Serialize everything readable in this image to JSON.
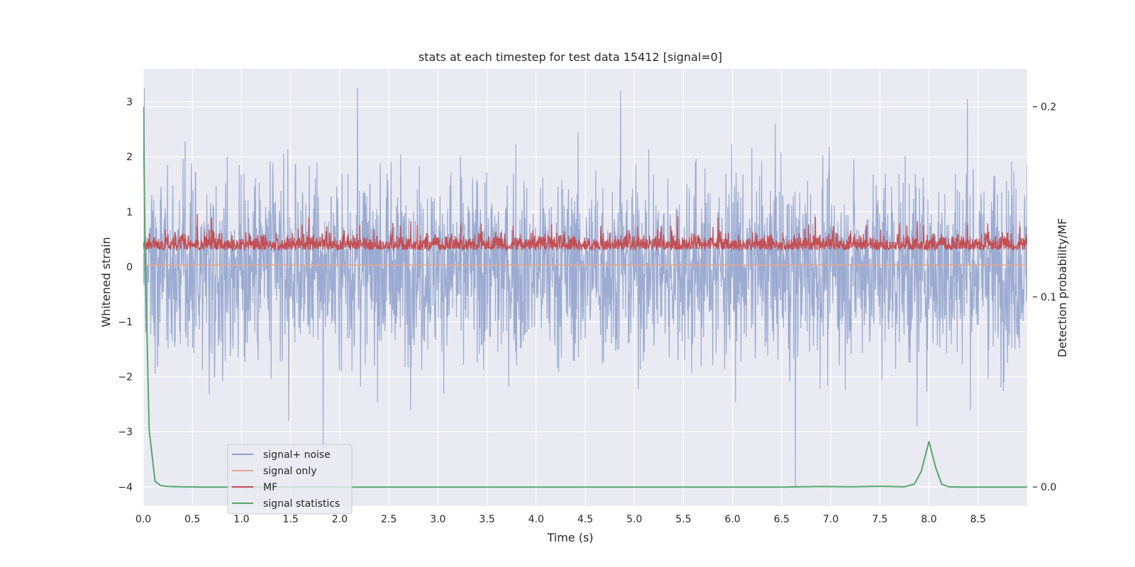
{
  "chart_data": {
    "type": "line",
    "title": "stats at each timestep for test data 15412 [signal=0]",
    "xlabel": "Time (s)",
    "ylabel": "Whitened strain",
    "y2label": "Detection probability/MF",
    "xlim": [
      0,
      9
    ],
    "ylim": [
      -4.35,
      3.6
    ],
    "y2lim": [
      -0.01,
      0.22
    ],
    "x_ticks": [
      0.0,
      0.5,
      1.0,
      1.5,
      2.0,
      2.5,
      3.0,
      3.5,
      4.0,
      4.5,
      5.0,
      5.5,
      6.0,
      6.5,
      7.0,
      7.5,
      8.0,
      8.5
    ],
    "x_tick_labels": [
      "0.0",
      "0.5",
      "1.0",
      "1.5",
      "2.0",
      "2.5",
      "3.0",
      "3.5",
      "4.0",
      "4.5",
      "5.0",
      "5.5",
      "6.0",
      "6.5",
      "7.0",
      "7.5",
      "8.0",
      "8.5"
    ],
    "y_ticks": [
      3,
      2,
      1,
      0,
      -1,
      -2,
      -3,
      -4
    ],
    "y_tick_labels": [
      "3",
      "2",
      "1",
      "0",
      "−1",
      "−2",
      "−3",
      "−4"
    ],
    "y2_ticks": [
      0.2,
      0.1,
      0.0
    ],
    "y2_tick_labels": [
      "0.2",
      "0.1",
      "0.0"
    ],
    "grid": true,
    "legend_position": "lower-left",
    "series": [
      {
        "name": "signal+ noise",
        "axis": "left",
        "color": "#8da0cb",
        "style": "dense noise, approximately within [-2.5, 2.5] whitened strain with spikes to about ±3.3, sampled over 0–9 s",
        "spikes": [
          [
            0.01,
            3.25
          ],
          [
            2.18,
            3.25
          ],
          [
            4.86,
            3.2
          ],
          [
            8.39,
            3.05
          ],
          [
            1.83,
            -3.3
          ],
          [
            6.64,
            -4.0
          ],
          [
            7.88,
            -2.9
          ],
          [
            1.48,
            -2.8
          ]
        ]
      },
      {
        "name": "signal only",
        "axis": "left",
        "color": "#e8a58a",
        "x": [
          0,
          9
        ],
        "values": [
          0.03,
          0.03
        ]
      },
      {
        "name": "MF",
        "axis": "left",
        "color": "#c44e52",
        "style": "noisy trace, approximately between 0.0 and 0.9 on the left axis, peaks near 1.0"
      },
      {
        "name": "signal statistics",
        "axis": "right",
        "color": "#55a868",
        "x": [
          0.0,
          0.02,
          0.06,
          0.12,
          0.18,
          0.25,
          0.4,
          0.6,
          1.0,
          2.0,
          3.0,
          4.0,
          5.0,
          6.0,
          6.5,
          6.9,
          7.2,
          7.5,
          7.75,
          7.85,
          7.92,
          8.0,
          8.07,
          8.13,
          8.2,
          8.35,
          8.6,
          9.0
        ],
        "values": [
          0.2,
          0.12,
          0.03,
          0.003,
          0.0007,
          0.0003,
          0.0001,
          0.0,
          0.0,
          0.0,
          0.0,
          0.0,
          0.0,
          0.0,
          0.0,
          0.0003,
          0.0001,
          0.0004,
          0.0001,
          0.0015,
          0.008,
          0.024,
          0.01,
          0.0015,
          0.0001,
          0.0,
          0.0,
          0.0
        ]
      }
    ]
  }
}
